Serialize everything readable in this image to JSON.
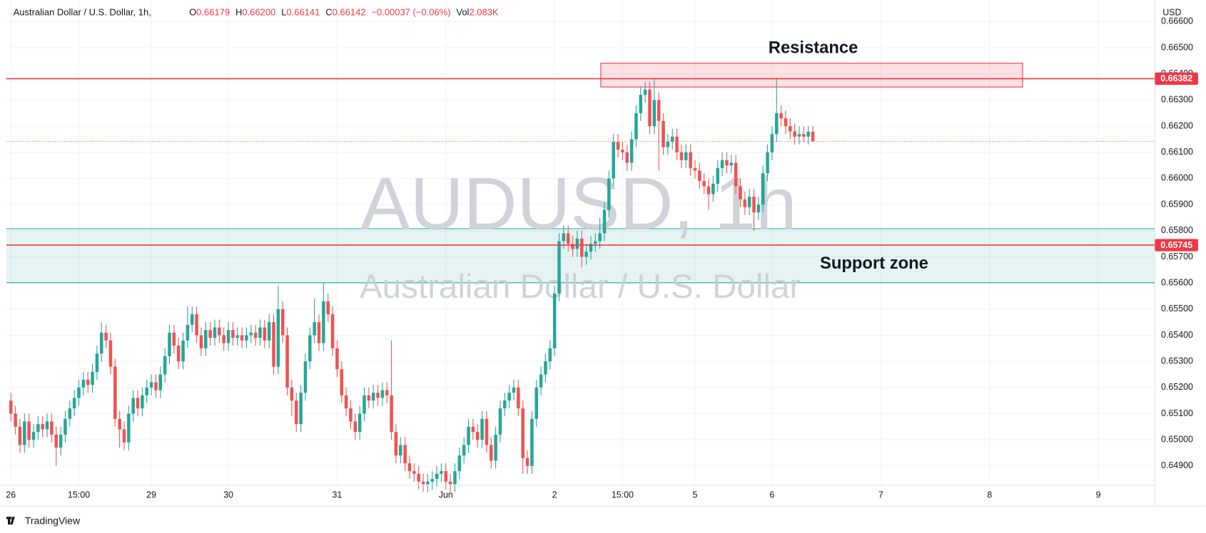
{
  "header": {
    "symbol": "Australian Dollar / U.S. Dollar, 1h,",
    "ohlc": [
      {
        "label": "O",
        "value": "0.66179"
      },
      {
        "label": "H",
        "value": "0.66200"
      },
      {
        "label": "L",
        "value": "0.66141"
      },
      {
        "label": "C",
        "value": "0.66142"
      }
    ],
    "change": "−0.00037 (−0.06%)",
    "volume_label": "Vol",
    "volume": "2.083K"
  },
  "footer": {
    "brand": "TradingView"
  },
  "chart_data": {
    "type": "candlestick",
    "currency": "USD",
    "watermark": [
      "AUDUSD, 1h",
      "Australian Dollar / U.S. Dollar"
    ],
    "up_color": "#26a69a",
    "down_color": "#ef5350",
    "grid": true,
    "xlim": [
      -1,
      252.5
    ],
    "ylim": [
      0.64826,
      0.66683
    ],
    "xticks": [
      {
        "value": 0,
        "label": "26"
      },
      {
        "value": 15,
        "label": "15:00"
      },
      {
        "value": 31,
        "label": "29"
      },
      {
        "value": 48,
        "label": "30"
      },
      {
        "value": 72,
        "label": "31"
      },
      {
        "value": 96,
        "label": "Jun"
      },
      {
        "value": 120,
        "label": "2"
      },
      {
        "value": 135,
        "label": "15:00"
      },
      {
        "value": 151,
        "label": "5"
      },
      {
        "value": 168,
        "label": "6"
      },
      {
        "value": 192,
        "label": "7"
      },
      {
        "value": 216,
        "label": "8"
      },
      {
        "value": 240,
        "label": "9"
      }
    ],
    "yticks": [
      {
        "value": 0.649,
        "label": "0.64900"
      },
      {
        "value": 0.65,
        "label": "0.65000"
      },
      {
        "value": 0.651,
        "label": "0.65100"
      },
      {
        "value": 0.652,
        "label": "0.65200"
      },
      {
        "value": 0.653,
        "label": "0.65300"
      },
      {
        "value": 0.654,
        "label": "0.65400"
      },
      {
        "value": 0.655,
        "label": "0.65500"
      },
      {
        "value": 0.656,
        "label": "0.65600"
      },
      {
        "value": 0.657,
        "label": "0.65700"
      },
      {
        "value": 0.658,
        "label": "0.65800"
      },
      {
        "value": 0.659,
        "label": "0.65900"
      },
      {
        "value": 0.66,
        "label": "0.66000"
      },
      {
        "value": 0.661,
        "label": "0.66100"
      },
      {
        "value": 0.662,
        "label": "0.66200"
      },
      {
        "value": 0.663,
        "label": "0.66300"
      },
      {
        "value": 0.664,
        "label": "0.66400"
      },
      {
        "value": 0.665,
        "label": "0.66500"
      },
      {
        "value": 0.666,
        "label": "0.66600"
      }
    ],
    "zones": [
      {
        "label": "Resistance",
        "x": [
          130.2,
          223.3
        ],
        "y": [
          0.6635,
          0.66441
        ],
        "color": "#f23645"
      },
      {
        "label": "Support zone",
        "x": [
          -1,
          252.5
        ],
        "y": [
          0.65601,
          0.65808
        ],
        "color": "#26a69a"
      }
    ],
    "hlines": [
      {
        "value": 0.66382,
        "color": "#f23645"
      },
      {
        "value": 0.65745,
        "color": "#f23645"
      }
    ],
    "candles": [
      [
        0.6515,
        0.6518,
        0.6507,
        0.651
      ],
      [
        0.651,
        0.6513,
        0.6502,
        0.6505
      ],
      [
        0.6505,
        0.6508,
        0.6495,
        0.6498
      ],
      [
        0.6498,
        0.651,
        0.6495,
        0.6507
      ],
      [
        0.6507,
        0.651,
        0.6497,
        0.65
      ],
      [
        0.65,
        0.6506,
        0.6497,
        0.6503
      ],
      [
        0.6503,
        0.6509,
        0.65,
        0.6506
      ],
      [
        0.6506,
        0.6509,
        0.6501,
        0.6504
      ],
      [
        0.6504,
        0.651,
        0.6501,
        0.6507
      ],
      [
        0.6507,
        0.651,
        0.6499,
        0.6502
      ],
      [
        0.6502,
        0.6505,
        0.649,
        0.6497
      ],
      [
        0.6497,
        0.6505,
        0.6494,
        0.6502
      ],
      [
        0.6502,
        0.6511,
        0.6499,
        0.6508
      ],
      [
        0.6508,
        0.6515,
        0.6505,
        0.6512
      ],
      [
        0.6512,
        0.6519,
        0.6509,
        0.6516
      ],
      [
        0.6516,
        0.6523,
        0.6513,
        0.652
      ],
      [
        0.652,
        0.6526,
        0.6517,
        0.6523
      ],
      [
        0.6523,
        0.6526,
        0.6518,
        0.6521
      ],
      [
        0.6521,
        0.6529,
        0.6518,
        0.6526
      ],
      [
        0.6526,
        0.6536,
        0.6523,
        0.6533
      ],
      [
        0.6533,
        0.6545,
        0.653,
        0.6541
      ],
      [
        0.6541,
        0.6544,
        0.6535,
        0.6538
      ],
      [
        0.6538,
        0.6541,
        0.6525,
        0.6528
      ],
      [
        0.6528,
        0.6531,
        0.6505,
        0.6508
      ],
      [
        0.6508,
        0.6511,
        0.6497,
        0.6504
      ],
      [
        0.6504,
        0.6507,
        0.6496,
        0.6499
      ],
      [
        0.6499,
        0.6513,
        0.6496,
        0.651
      ],
      [
        0.651,
        0.6519,
        0.6507,
        0.6516
      ],
      [
        0.6516,
        0.6519,
        0.6509,
        0.6512
      ],
      [
        0.6512,
        0.652,
        0.6509,
        0.6517
      ],
      [
        0.6517,
        0.6523,
        0.6514,
        0.652
      ],
      [
        0.652,
        0.6525,
        0.6517,
        0.6522
      ],
      [
        0.6522,
        0.6525,
        0.6516,
        0.6519
      ],
      [
        0.6519,
        0.6528,
        0.6516,
        0.6525
      ],
      [
        0.6525,
        0.6535,
        0.6522,
        0.6532
      ],
      [
        0.6532,
        0.6544,
        0.6529,
        0.6541
      ],
      [
        0.6541,
        0.6544,
        0.6533,
        0.6536
      ],
      [
        0.6536,
        0.6539,
        0.6527,
        0.653
      ],
      [
        0.653,
        0.6541,
        0.6527,
        0.6538
      ],
      [
        0.6538,
        0.6551,
        0.6535,
        0.6544
      ],
      [
        0.6544,
        0.6551,
        0.6541,
        0.6548
      ],
      [
        0.6548,
        0.6551,
        0.6537,
        0.654
      ],
      [
        0.654,
        0.6543,
        0.6532,
        0.6535
      ],
      [
        0.6535,
        0.6545,
        0.6532,
        0.6542
      ],
      [
        0.6542,
        0.6545,
        0.6536,
        0.6539
      ],
      [
        0.6539,
        0.6546,
        0.6536,
        0.6543
      ],
      [
        0.6543,
        0.6546,
        0.6537,
        0.654
      ],
      [
        0.654,
        0.6543,
        0.6534,
        0.6537
      ],
      [
        0.6537,
        0.6545,
        0.6534,
        0.6542
      ],
      [
        0.6542,
        0.6545,
        0.6536,
        0.6539
      ],
      [
        0.6539,
        0.6543,
        0.6536,
        0.654
      ],
      [
        0.654,
        0.6543,
        0.6535,
        0.6538
      ],
      [
        0.6538,
        0.6543,
        0.6535,
        0.654
      ],
      [
        0.654,
        0.6544,
        0.6537,
        0.6541
      ],
      [
        0.6541,
        0.6544,
        0.6536,
        0.6539
      ],
      [
        0.6539,
        0.6546,
        0.6536,
        0.6543
      ],
      [
        0.6543,
        0.6546,
        0.6535,
        0.6538
      ],
      [
        0.6538,
        0.6548,
        0.6535,
        0.6545
      ],
      [
        0.6545,
        0.6548,
        0.6525,
        0.6528
      ],
      [
        0.6528,
        0.6559,
        0.6525,
        0.655
      ],
      [
        0.655,
        0.6553,
        0.6537,
        0.654
      ],
      [
        0.654,
        0.6543,
        0.6517,
        0.652
      ],
      [
        0.652,
        0.6523,
        0.6509,
        0.6515
      ],
      [
        0.6515,
        0.6518,
        0.6503,
        0.6506
      ],
      [
        0.6506,
        0.6521,
        0.6503,
        0.6518
      ],
      [
        0.6518,
        0.6533,
        0.6515,
        0.653
      ],
      [
        0.653,
        0.6543,
        0.6527,
        0.654
      ],
      [
        0.654,
        0.6554,
        0.6537,
        0.6545
      ],
      [
        0.6545,
        0.6548,
        0.6534,
        0.6537
      ],
      [
        0.6537,
        0.656,
        0.6534,
        0.6553
      ],
      [
        0.6553,
        0.6556,
        0.6545,
        0.6548
      ],
      [
        0.6548,
        0.6551,
        0.6532,
        0.6535
      ],
      [
        0.6535,
        0.6538,
        0.6524,
        0.6527
      ],
      [
        0.6527,
        0.653,
        0.6514,
        0.6517
      ],
      [
        0.6517,
        0.652,
        0.6509,
        0.6512
      ],
      [
        0.6512,
        0.6515,
        0.6504,
        0.6507
      ],
      [
        0.6507,
        0.651,
        0.65,
        0.6503
      ],
      [
        0.6503,
        0.6513,
        0.65,
        0.651
      ],
      [
        0.651,
        0.652,
        0.6507,
        0.6517
      ],
      [
        0.6517,
        0.652,
        0.6512,
        0.6515
      ],
      [
        0.6515,
        0.6521,
        0.6512,
        0.6518
      ],
      [
        0.6518,
        0.6521,
        0.6513,
        0.6516
      ],
      [
        0.6516,
        0.6522,
        0.6513,
        0.6519
      ],
      [
        0.6519,
        0.6522,
        0.6514,
        0.6517
      ],
      [
        0.6517,
        0.6538,
        0.65,
        0.6503
      ],
      [
        0.6503,
        0.6506,
        0.6491,
        0.6494
      ],
      [
        0.6494,
        0.6501,
        0.6491,
        0.6498
      ],
      [
        0.6498,
        0.6501,
        0.6488,
        0.6491
      ],
      [
        0.6491,
        0.6494,
        0.6485,
        0.6488
      ],
      [
        0.6488,
        0.6491,
        0.6484,
        0.6487
      ],
      [
        0.6487,
        0.649,
        0.6481,
        0.6484
      ],
      [
        0.6484,
        0.6487,
        0.648,
        0.6483
      ],
      [
        0.6483,
        0.6487,
        0.648,
        0.6484
      ],
      [
        0.6484,
        0.6488,
        0.6481,
        0.6485
      ],
      [
        0.6485,
        0.649,
        0.6482,
        0.6487
      ],
      [
        0.6487,
        0.6491,
        0.6484,
        0.6488
      ],
      [
        0.6488,
        0.6491,
        0.6481,
        0.6484
      ],
      [
        0.6484,
        0.6487,
        0.648,
        0.6483
      ],
      [
        0.6483,
        0.6491,
        0.648,
        0.6488
      ],
      [
        0.6488,
        0.6497,
        0.6485,
        0.6494
      ],
      [
        0.6494,
        0.6501,
        0.6491,
        0.6498
      ],
      [
        0.6498,
        0.6508,
        0.6495,
        0.6505
      ],
      [
        0.6505,
        0.6508,
        0.65,
        0.6503
      ],
      [
        0.6503,
        0.6506,
        0.6497,
        0.65
      ],
      [
        0.65,
        0.6511,
        0.6497,
        0.6508
      ],
      [
        0.6508,
        0.6511,
        0.6495,
        0.6498
      ],
      [
        0.6498,
        0.6501,
        0.6489,
        0.6492
      ],
      [
        0.6492,
        0.6505,
        0.6489,
        0.6502
      ],
      [
        0.6502,
        0.6515,
        0.6499,
        0.6512
      ],
      [
        0.6512,
        0.6518,
        0.6509,
        0.6515
      ],
      [
        0.6515,
        0.6521,
        0.6512,
        0.6518
      ],
      [
        0.6518,
        0.6523,
        0.6515,
        0.652
      ],
      [
        0.652,
        0.6523,
        0.6509,
        0.6512
      ],
      [
        0.6512,
        0.6515,
        0.6487,
        0.6493
      ],
      [
        0.6493,
        0.6496,
        0.6487,
        0.649
      ],
      [
        0.649,
        0.6511,
        0.6487,
        0.6508
      ],
      [
        0.6508,
        0.6523,
        0.6505,
        0.652
      ],
      [
        0.652,
        0.6528,
        0.6517,
        0.6525
      ],
      [
        0.6525,
        0.6533,
        0.6522,
        0.653
      ],
      [
        0.653,
        0.6538,
        0.6527,
        0.6535
      ],
      [
        0.6535,
        0.6559,
        0.6532,
        0.6556
      ],
      [
        0.6556,
        0.6579,
        0.6553,
        0.6576
      ],
      [
        0.6576,
        0.6582,
        0.6573,
        0.6579
      ],
      [
        0.6579,
        0.6582,
        0.6572,
        0.6575
      ],
      [
        0.6575,
        0.6578,
        0.657,
        0.6573
      ],
      [
        0.6573,
        0.658,
        0.657,
        0.6577
      ],
      [
        0.6577,
        0.658,
        0.6566,
        0.657
      ],
      [
        0.657,
        0.6575,
        0.6567,
        0.6572
      ],
      [
        0.6572,
        0.6578,
        0.6569,
        0.6575
      ],
      [
        0.6575,
        0.6579,
        0.6572,
        0.6576
      ],
      [
        0.6576,
        0.6585,
        0.6573,
        0.6579
      ],
      [
        0.6579,
        0.6591,
        0.6576,
        0.6588
      ],
      [
        0.6588,
        0.6603,
        0.6585,
        0.66
      ],
      [
        0.66,
        0.6617,
        0.6597,
        0.6614
      ],
      [
        0.6614,
        0.6617,
        0.6608,
        0.6611
      ],
      [
        0.6611,
        0.6614,
        0.6607,
        0.661
      ],
      [
        0.661,
        0.6613,
        0.6603,
        0.6606
      ],
      [
        0.6606,
        0.6618,
        0.6603,
        0.6615
      ],
      [
        0.6615,
        0.6628,
        0.6612,
        0.6625
      ],
      [
        0.6625,
        0.6635,
        0.6622,
        0.6632
      ],
      [
        0.6632,
        0.6637,
        0.6629,
        0.6634
      ],
      [
        0.6634,
        0.6637,
        0.6617,
        0.662
      ],
      [
        0.662,
        0.66385,
        0.6617,
        0.663
      ],
      [
        0.663,
        0.6633,
        0.6603,
        0.6622
      ],
      [
        0.6622,
        0.6625,
        0.6609,
        0.6612
      ],
      [
        0.6612,
        0.6617,
        0.6609,
        0.6614
      ],
      [
        0.6614,
        0.6619,
        0.6611,
        0.6616
      ],
      [
        0.6616,
        0.6619,
        0.6607,
        0.661
      ],
      [
        0.661,
        0.6613,
        0.6604,
        0.6607
      ],
      [
        0.6607,
        0.6613,
        0.6604,
        0.661
      ],
      [
        0.661,
        0.6613,
        0.6601,
        0.6604
      ],
      [
        0.6604,
        0.6607,
        0.66,
        0.6603
      ],
      [
        0.6603,
        0.6606,
        0.6596,
        0.6599
      ],
      [
        0.6599,
        0.6602,
        0.6594,
        0.6597
      ],
      [
        0.6597,
        0.66,
        0.6588,
        0.6594
      ],
      [
        0.6594,
        0.6601,
        0.6591,
        0.6598
      ],
      [
        0.6598,
        0.6607,
        0.6595,
        0.6604
      ],
      [
        0.6604,
        0.661,
        0.6601,
        0.6607
      ],
      [
        0.6607,
        0.661,
        0.6602,
        0.6605
      ],
      [
        0.6605,
        0.6609,
        0.6602,
        0.6606
      ],
      [
        0.6606,
        0.6609,
        0.6594,
        0.6597
      ],
      [
        0.6597,
        0.66,
        0.6589,
        0.6592
      ],
      [
        0.6592,
        0.6595,
        0.6586,
        0.6589
      ],
      [
        0.6589,
        0.6596,
        0.6586,
        0.6593
      ],
      [
        0.6593,
        0.6596,
        0.658,
        0.6587
      ],
      [
        0.6587,
        0.6593,
        0.6584,
        0.659
      ],
      [
        0.659,
        0.6605,
        0.6587,
        0.6602
      ],
      [
        0.6602,
        0.6613,
        0.6599,
        0.661
      ],
      [
        0.661,
        0.662,
        0.6607,
        0.6617
      ],
      [
        0.6617,
        0.66385,
        0.6614,
        0.6625
      ],
      [
        0.6625,
        0.6628,
        0.662,
        0.6623
      ],
      [
        0.6623,
        0.6626,
        0.6617,
        0.662
      ],
      [
        0.662,
        0.6623,
        0.6615,
        0.6618
      ],
      [
        0.6618,
        0.6621,
        0.6613,
        0.6616
      ],
      [
        0.6616,
        0.662,
        0.6613,
        0.6617
      ],
      [
        0.6617,
        0.662,
        0.6614,
        0.6616
      ],
      [
        0.6616,
        0.662,
        0.6613,
        0.66179
      ],
      [
        0.66179,
        0.662,
        0.66141,
        0.66142
      ]
    ]
  }
}
